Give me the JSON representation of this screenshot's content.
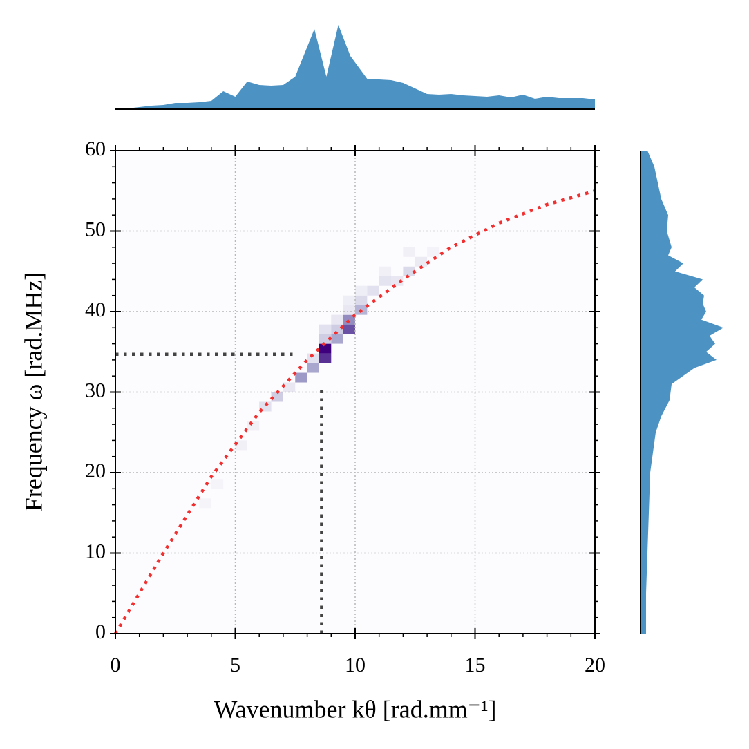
{
  "chart_data": {
    "type": "heatmap",
    "xlabel": "Wavenumber kθ [rad.mm⁻¹]",
    "ylabel": "Frequency ω [rad.MHz]",
    "xlim": [
      0,
      20
    ],
    "ylim": [
      0,
      60
    ],
    "xticks": [
      0,
      5,
      10,
      15,
      20
    ],
    "yticks": [
      0,
      10,
      20,
      30,
      40,
      50,
      60
    ],
    "xminorticks": [
      1,
      2,
      3,
      4,
      6,
      7,
      8,
      9,
      11,
      12,
      13,
      14,
      16,
      17,
      18,
      19
    ],
    "yminorticks": [
      2,
      4,
      6,
      8,
      12,
      14,
      16,
      18,
      22,
      24,
      26,
      28,
      32,
      34,
      36,
      38,
      42,
      44,
      46,
      48,
      52,
      54,
      56,
      58
    ],
    "grid": true,
    "colormap": [
      [
        0,
        "#fcfbfd"
      ],
      [
        0.25,
        "#dadaeb"
      ],
      [
        0.5,
        "#9e9ac8"
      ],
      [
        0.75,
        "#6a51a3"
      ],
      [
        1,
        "#3f007d"
      ]
    ],
    "heatmap": {
      "x_bin_width": 0.5,
      "y_bin_width": 1.2,
      "cells": [
        [
          8.5,
          34.8,
          1.0
        ],
        [
          8.5,
          33.6,
          0.85
        ],
        [
          9.5,
          37.2,
          0.75
        ],
        [
          9.5,
          38.4,
          0.55
        ],
        [
          9.0,
          36.0,
          0.45
        ],
        [
          10.0,
          39.6,
          0.4
        ],
        [
          10.0,
          40.8,
          0.25
        ],
        [
          8.0,
          32.4,
          0.45
        ],
        [
          7.5,
          31.2,
          0.5
        ],
        [
          6.5,
          28.8,
          0.3
        ],
        [
          6.0,
          27.6,
          0.2
        ],
        [
          7.0,
          30.0,
          0.15
        ],
        [
          10.5,
          42.0,
          0.2
        ],
        [
          11.0,
          43.2,
          0.18
        ],
        [
          11.5,
          43.2,
          0.15
        ],
        [
          12.0,
          44.4,
          0.25
        ],
        [
          12.5,
          45.6,
          0.12
        ],
        [
          8.5,
          37.2,
          0.2
        ],
        [
          9.0,
          38.4,
          0.15
        ],
        [
          9.5,
          39.6,
          0.15
        ],
        [
          8.5,
          36.0,
          0.3
        ],
        [
          5.0,
          22.8,
          0.08
        ],
        [
          5.5,
          25.2,
          0.08
        ],
        [
          4.0,
          18.0,
          0.05
        ],
        [
          3.5,
          15.6,
          0.05
        ],
        [
          9.5,
          40.8,
          0.1
        ],
        [
          10.0,
          42.0,
          0.1
        ],
        [
          11.0,
          44.4,
          0.08
        ],
        [
          12.0,
          46.8,
          0.08
        ],
        [
          13.0,
          46.8,
          0.06
        ],
        [
          8.0,
          33.6,
          0.2
        ],
        [
          9.0,
          37.2,
          0.3
        ]
      ]
    },
    "lines": [
      {
        "x": [
          0,
          2,
          4,
          6,
          8,
          10,
          12,
          14,
          16,
          18,
          20
        ],
        "y": [
          0,
          10,
          19.5,
          27.5,
          34,
          39.6,
          44,
          48,
          51,
          53.3,
          55
        ],
        "color": "#f03030"
      },
      {
        "x": [
          0,
          7.4
        ],
        "y": [
          34.7,
          34.7
        ],
        "color": "#444444"
      },
      {
        "x": [
          8.6,
          8.6
        ],
        "y": [
          0,
          30.5
        ],
        "color": "#444444"
      }
    ],
    "top_marginal": {
      "color": "#4c92c3",
      "x": [
        0,
        0.5,
        1,
        1.5,
        2,
        2.5,
        3,
        3.5,
        4,
        4.5,
        5,
        5.5,
        6,
        6.5,
        7,
        7.5,
        8.3,
        8.8,
        9.3,
        9.8,
        10.5,
        11,
        11.5,
        12,
        12.5,
        13,
        13.5,
        14,
        14.5,
        15,
        15.5,
        16,
        16.5,
        17,
        17.5,
        18,
        18.5,
        19,
        19.5,
        20
      ],
      "values": [
        0,
        1,
        3,
        5,
        6,
        9,
        9,
        10,
        12,
        26,
        18,
        40,
        35,
        34,
        35,
        47,
        116,
        47,
        122,
        77,
        44,
        43,
        42,
        38,
        30,
        22,
        21,
        22,
        20,
        19,
        18,
        20,
        17,
        21,
        15,
        18,
        16,
        16,
        16,
        14
      ]
    },
    "right_marginal": {
      "color": "#4c92c3",
      "y": [
        0,
        5,
        10,
        15,
        20,
        25,
        27,
        29,
        31,
        33,
        34,
        35,
        36,
        37,
        38,
        39,
        40,
        41,
        42,
        43,
        44,
        45,
        46,
        47,
        48,
        50,
        52,
        54,
        56,
        58,
        60
      ],
      "values": [
        8,
        8,
        10,
        12,
        14,
        22,
        30,
        42,
        45,
        78,
        110,
        95,
        108,
        100,
        120,
        88,
        95,
        90,
        92,
        78,
        90,
        50,
        62,
        40,
        45,
        38,
        40,
        30,
        25,
        20,
        10
      ]
    }
  }
}
